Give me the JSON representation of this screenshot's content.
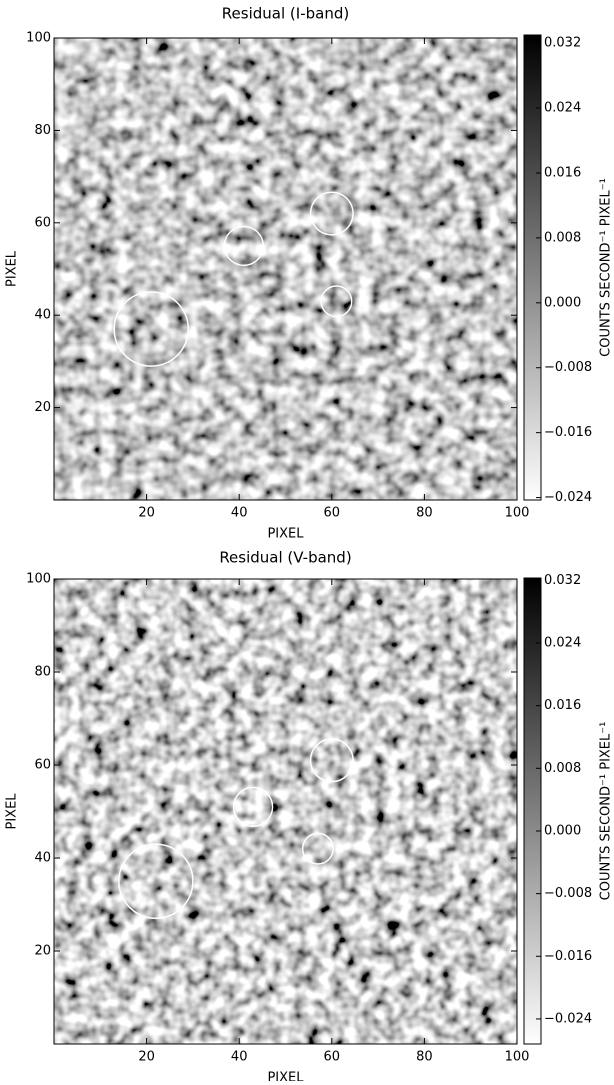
{
  "chart_data": [
    {
      "type": "heatmap",
      "title": "Residual (I-band)",
      "xlabel": "PIXEL",
      "ylabel": "PIXEL",
      "colorbar_label": "COUNTS SECOND⁻¹  PIXEL⁻¹",
      "xlim": [
        0,
        100
      ],
      "ylim": [
        0,
        100
      ],
      "xticks": [
        20,
        40,
        60,
        80,
        100
      ],
      "yticks": [
        20,
        40,
        60,
        80,
        100
      ],
      "clim": [
        -0.0243,
        0.033
      ],
      "cticks": [
        0.032,
        0.024,
        0.016,
        0.008,
        {
          "value": 0,
          "label": "0.000"
        },
        {
          "value": -0.008,
          "label": "−0.008"
        },
        {
          "value": -0.016,
          "label": "−0.016"
        },
        {
          "value": -0.024,
          "label": "−0.024"
        }
      ],
      "circles": [
        {
          "x": 21,
          "y": 37,
          "r": 8
        },
        {
          "x": 41,
          "y": 55,
          "r": 4.2
        },
        {
          "x": 60,
          "y": 62,
          "r": 4.6
        },
        {
          "x": 61,
          "y": 43,
          "r": 3.3
        }
      ]
    },
    {
      "type": "heatmap",
      "title": "Residual (V-band)",
      "xlabel": "PIXEL",
      "ylabel": "PIXEL",
      "colorbar_label": "COUNTS SECOND⁻¹  PIXEL⁻¹",
      "xlim": [
        0,
        100
      ],
      "ylim": [
        0,
        100
      ],
      "xticks": [
        20,
        40,
        60,
        80,
        100
      ],
      "yticks": [
        20,
        40,
        60,
        80,
        100
      ],
      "clim": [
        -0.0272,
        0.0323
      ],
      "cticks": [
        0.032,
        0.024,
        0.016,
        0.008,
        {
          "value": 0,
          "label": "0.000"
        },
        {
          "value": -0.008,
          "label": "−0.008"
        },
        {
          "value": -0.016,
          "label": "−0.016"
        },
        {
          "value": -0.024,
          "label": "−0.024"
        }
      ],
      "circles": [
        {
          "x": 22,
          "y": 35,
          "r": 8
        },
        {
          "x": 43,
          "y": 51,
          "r": 4.2
        },
        {
          "x": 60,
          "y": 61,
          "r": 4.6
        },
        {
          "x": 57,
          "y": 42,
          "r": 3.3
        }
      ]
    }
  ]
}
